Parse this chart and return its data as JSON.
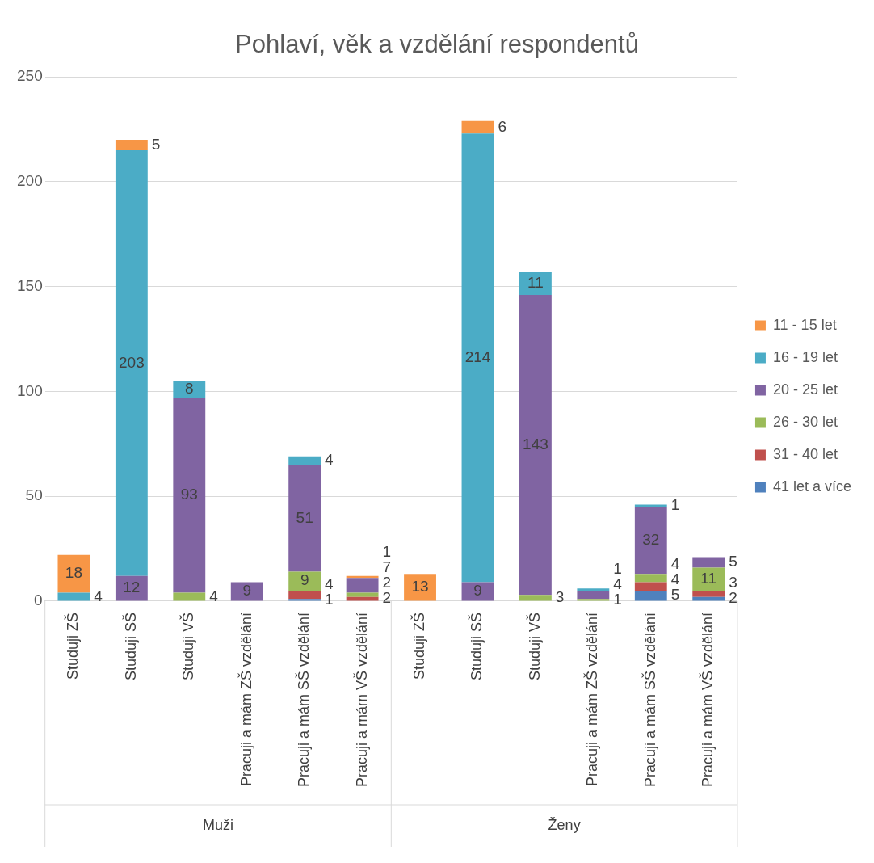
{
  "chart_data": {
    "type": "bar",
    "title": "Pohlaví, věk a vzdělání respondentů",
    "categories": [
      "Studuji ZŠ",
      "Studuji SŠ",
      "Studuji VŠ",
      "Pracuji a mám ZŠ vzdělání",
      "Pracuji a mám SŠ vzdělání",
      "Pracuji a mám VŠ vzdělání",
      "Studuji ZŠ",
      "Studuji SŠ",
      "Studuji VŠ",
      "Pracuji a mám ZŠ vzdělání",
      "Pracuji a mám SŠ vzdělání",
      "Pracuji a mám VŠ vzdělání"
    ],
    "annotations": [
      "Muži",
      "Ženy"
    ],
    "stacked": true,
    "data_labels": true,
    "legend": "right",
    "grid": "y",
    "ylim": [
      0,
      250
    ],
    "yticks": [
      0,
      50,
      100,
      150,
      200,
      250
    ],
    "series": [
      {
        "name": "41 let a více",
        "color": "#4f81bd",
        "values": [
          null,
          null,
          null,
          null,
          1,
          null,
          null,
          null,
          null,
          null,
          5,
          2
        ]
      },
      {
        "name": "31 - 40 let",
        "color": "#c0504d",
        "values": [
          null,
          null,
          null,
          null,
          4,
          2,
          null,
          null,
          null,
          null,
          4,
          3
        ]
      },
      {
        "name": "26 - 30 let",
        "color": "#9bbb59",
        "values": [
          null,
          null,
          4,
          null,
          9,
          2,
          null,
          null,
          3,
          1,
          4,
          11
        ]
      },
      {
        "name": "20 - 25 let",
        "color": "#8064a2",
        "values": [
          null,
          12,
          93,
          9,
          51,
          7,
          null,
          9,
          143,
          4,
          32,
          5
        ]
      },
      {
        "name": "16 - 19 let",
        "color": "#4bacc6",
        "values": [
          4,
          203,
          8,
          null,
          4,
          null,
          null,
          214,
          11,
          1,
          1,
          null
        ]
      },
      {
        "name": "11 - 15 let",
        "color": "#f79646",
        "values": [
          18,
          5,
          null,
          null,
          null,
          1,
          13,
          6,
          null,
          null,
          null,
          null
        ]
      }
    ]
  }
}
